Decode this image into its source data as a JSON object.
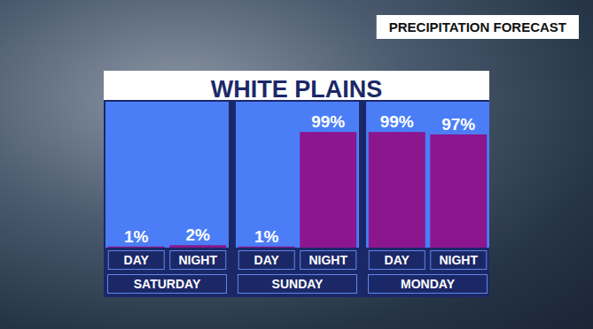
{
  "chart_data": {
    "type": "bar",
    "title": "WHITE PLAINS",
    "subtitle": "PRECIPITATION FORECAST",
    "categories": [
      "DAY",
      "NIGHT",
      "DAY",
      "NIGHT",
      "DAY",
      "NIGHT"
    ],
    "groups": [
      "SATURDAY",
      "SUNDAY",
      "MONDAY"
    ],
    "values": [
      1,
      2,
      1,
      99,
      99,
      97
    ],
    "value_labels": [
      "1%",
      "2%",
      "1%",
      "99%",
      "99%",
      "97%"
    ],
    "color": "#8b168e",
    "ylim": [
      0,
      125
    ],
    "tick_labels": "x",
    "data_labels": true
  }
}
